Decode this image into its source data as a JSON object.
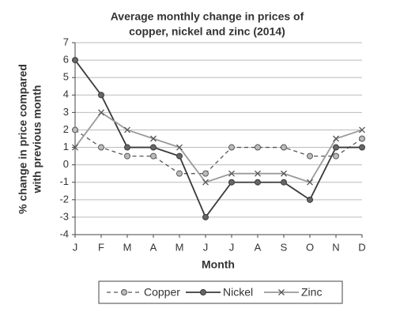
{
  "chart_data": {
    "type": "line",
    "title": [
      "Average monthly change in prices of",
      "copper, nickel and zinc (2014)"
    ],
    "x_label": "Month",
    "y_label": [
      "% change in price compared",
      "with previous month"
    ],
    "categories": [
      "J",
      "F",
      "M",
      "A",
      "M",
      "J",
      "J",
      "A",
      "S",
      "O",
      "N",
      "D"
    ],
    "series": [
      {
        "name": "Copper",
        "color": "#555555",
        "marker_fill": "#bbbbbb",
        "dash": true,
        "marker": "circle",
        "values": [
          2,
          1,
          0.5,
          0.5,
          -0.5,
          -0.5,
          1,
          1,
          1,
          0.5,
          0.5,
          1.5
        ]
      },
      {
        "name": "Nickel",
        "color": "#3a3a3a",
        "marker_fill": "#666666",
        "dash": false,
        "marker": "circle",
        "values": [
          6,
          4,
          1,
          1,
          0.5,
          -3,
          -1,
          -1,
          -1,
          -2,
          1,
          1
        ]
      },
      {
        "name": "Zinc",
        "color": "#9a9a9a",
        "marker_fill": "#555555",
        "dash": false,
        "marker": "x",
        "values": [
          1,
          3,
          2,
          1.5,
          1,
          -1,
          -0.5,
          -0.5,
          -0.5,
          -1,
          1.5,
          2
        ]
      }
    ],
    "ylim": [
      -4,
      7
    ],
    "yticks": [
      -4,
      -3,
      -2,
      -1,
      0,
      1,
      2,
      3,
      4,
      5,
      6,
      7
    ],
    "grid": true
  }
}
